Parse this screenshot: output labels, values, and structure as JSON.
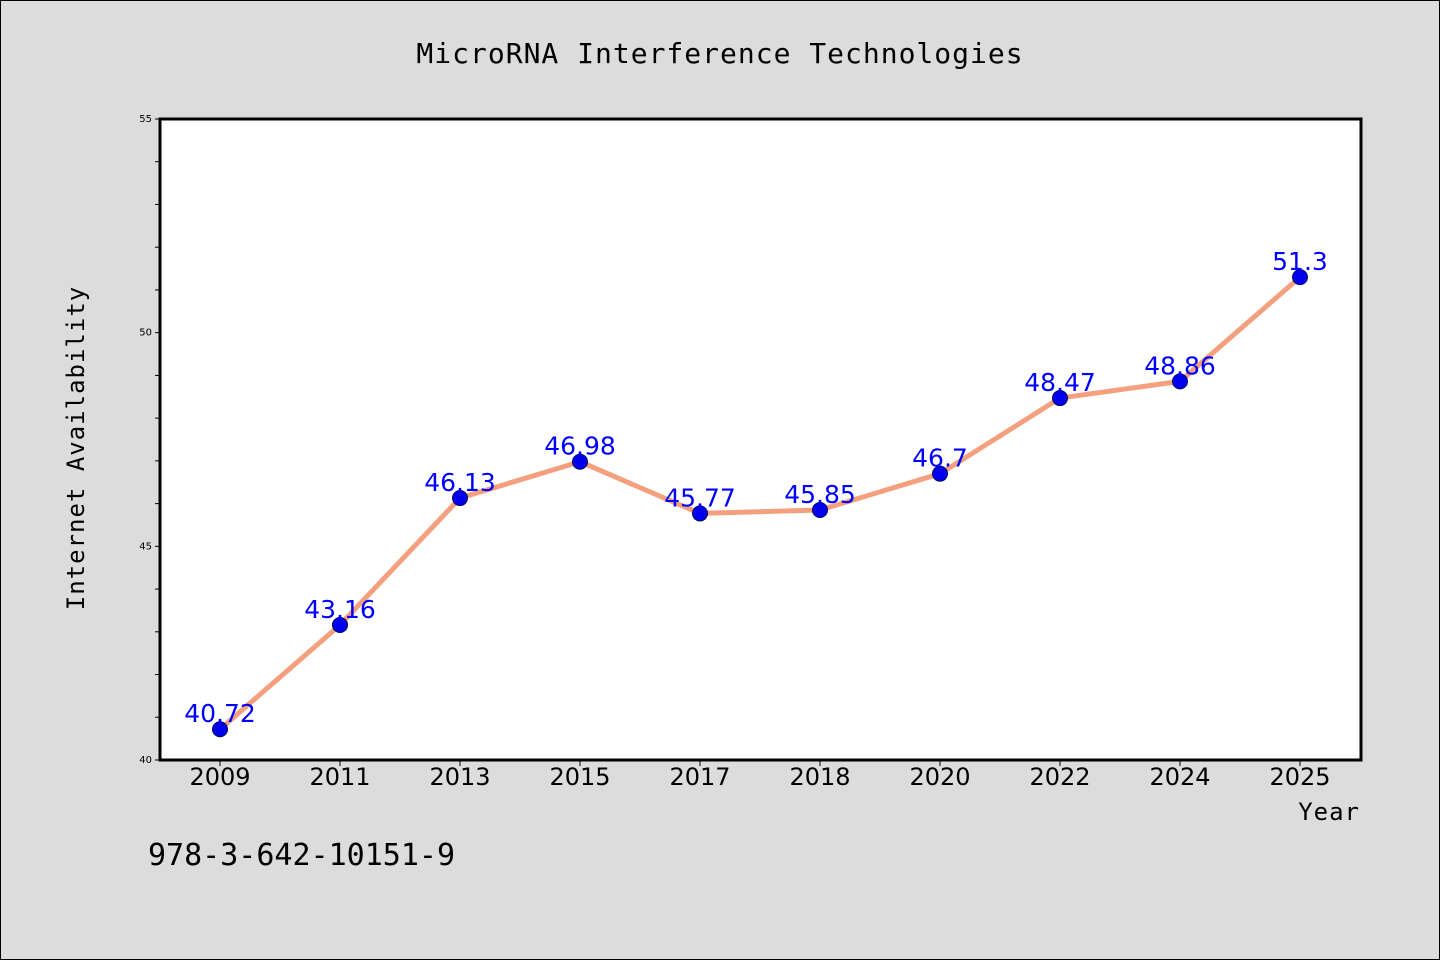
{
  "chart_data": {
    "type": "line",
    "title": "MicroRNA Interference Technologies",
    "xlabel": "Year",
    "ylabel": "Internet Availability",
    "categories": [
      "2009",
      "2011",
      "2013",
      "2015",
      "2017",
      "2018",
      "2020",
      "2022",
      "2024",
      "2025"
    ],
    "values": [
      40.72,
      43.16,
      46.13,
      46.98,
      45.77,
      45.85,
      46.7,
      48.47,
      48.86,
      51.3
    ],
    "data_labels": [
      "40.72",
      "43.16",
      "46.13",
      "46.98",
      "45.77",
      "45.85",
      "46.7",
      "48.47",
      "48.86",
      "51.3"
    ],
    "ylim": [
      40,
      55
    ],
    "yticks": [
      "40",
      "45",
      "50",
      "55"
    ],
    "grid": false,
    "line_color": "#f4a07e",
    "marker_color": "#0000ee",
    "label_color": "#0000ff"
  },
  "footer": {
    "isbn": "978-3-642-10151-9"
  }
}
